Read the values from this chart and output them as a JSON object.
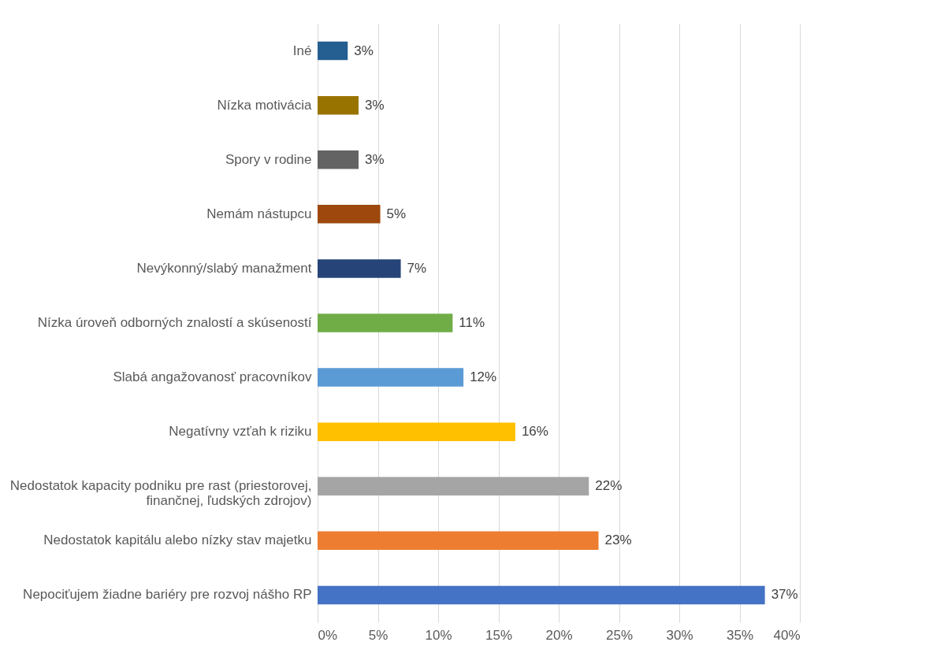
{
  "chart_data": {
    "type": "bar",
    "orientation": "horizontal",
    "categories": [
      "Iné",
      "Nízka motivácia",
      "Spory v rodine",
      "Nemám nástupcu",
      "Nevýkonný/slabý manažment",
      "Nízka úroveň odborných znalostí a skúseností",
      "Slabá angažovanosť pracovníkov",
      "Negatívny vzťah k riziku",
      "Nedostatok kapacity podniku pre rast (priestorovej, finančnej, ľudských zdrojov)",
      "Nedostatok kapitálu alebo nízky stav majetku",
      "Nepociťujem žiadne bariéry pre rozvoj nášho RP"
    ],
    "values": [
      2.5,
      3.4,
      3.4,
      5.2,
      6.9,
      11.2,
      12.1,
      16.4,
      22.5,
      23.3,
      37.1
    ],
    "value_labels": [
      "3%",
      "3%",
      "3%",
      "5%",
      "7%",
      "11%",
      "12%",
      "16%",
      "22%",
      "23%",
      "37%"
    ],
    "colors": [
      "#255e91",
      "#997300",
      "#636363",
      "#9e480e",
      "#264478",
      "#70ad47",
      "#5b9bd5",
      "#ffc000",
      "#a5a5a5",
      "#ed7d31",
      "#4472c4"
    ],
    "xlim": [
      0,
      40
    ],
    "xticks": [
      {
        "value": 0,
        "label": "0%"
      },
      {
        "value": 5,
        "label": "5%"
      },
      {
        "value": 10,
        "label": "10%"
      },
      {
        "value": 15,
        "label": "15%"
      },
      {
        "value": 20,
        "label": "20%"
      },
      {
        "value": 25,
        "label": "25%"
      },
      {
        "value": 30,
        "label": "30%"
      },
      {
        "value": 35,
        "label": "35%"
      },
      {
        "value": 40,
        "label": "40%"
      }
    ],
    "grid": "x"
  }
}
